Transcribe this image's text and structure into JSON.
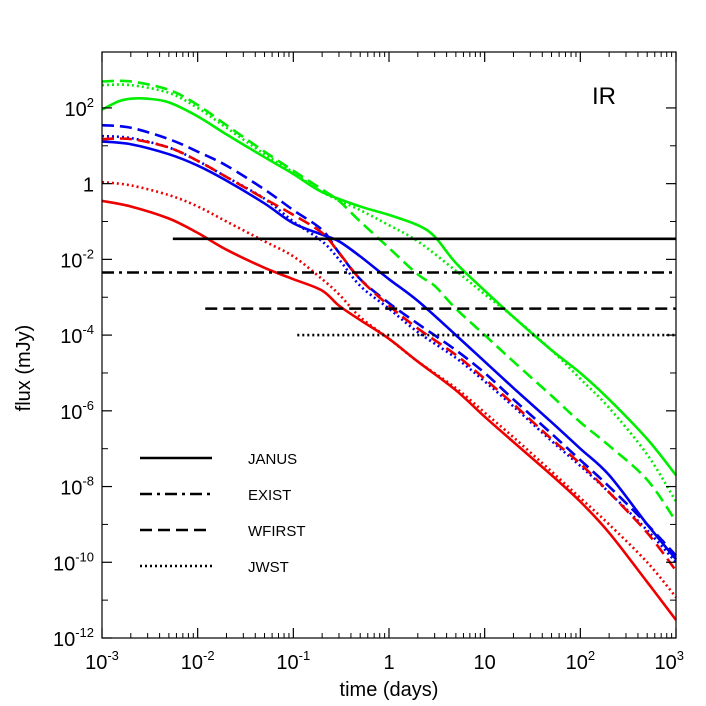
{
  "chart_data": {
    "type": "line",
    "annotation": "IR",
    "xlabel": "time (days)",
    "ylabel": "flux (mJy)",
    "x_scale": "log",
    "y_scale": "log",
    "xlim": [
      0.001,
      1000
    ],
    "ylim": [
      1e-12,
      3000
    ],
    "grid": false,
    "legend_position": "bottom-left",
    "x_ticks": [
      {
        "value": 0.001,
        "base": "10",
        "exp": "-3"
      },
      {
        "value": 0.01,
        "base": "10",
        "exp": "-2"
      },
      {
        "value": 0.1,
        "base": "10",
        "exp": "-1"
      },
      {
        "value": 1,
        "base": "1",
        "exp": ""
      },
      {
        "value": 10,
        "base": "10",
        "exp": ""
      },
      {
        "value": 100,
        "base": "10",
        "exp": "2"
      },
      {
        "value": 1000,
        "base": "10",
        "exp": "3"
      }
    ],
    "y_ticks": [
      {
        "value": 1e-12,
        "base": "10",
        "exp": "-12"
      },
      {
        "value": 1e-10,
        "base": "10",
        "exp": "-10"
      },
      {
        "value": 1e-08,
        "base": "10",
        "exp": "-8"
      },
      {
        "value": 1e-06,
        "base": "10",
        "exp": "-6"
      },
      {
        "value": 0.0001,
        "base": "10",
        "exp": "-4"
      },
      {
        "value": 0.01,
        "base": "10",
        "exp": "-2"
      },
      {
        "value": 1,
        "base": "1",
        "exp": ""
      },
      {
        "value": 100,
        "base": "10",
        "exp": "2"
      }
    ],
    "legend": [
      {
        "label": "JANUS",
        "style": "solid"
      },
      {
        "label": "EXIST",
        "style": "dashdot"
      },
      {
        "label": "WFIRST",
        "style": "dashed"
      },
      {
        "label": "JWST",
        "style": "dotted"
      }
    ],
    "thresholds": [
      {
        "instrument": "JANUS",
        "style": "solid",
        "flux": 0.035,
        "x_start": 0.0055,
        "x_end": 1000
      },
      {
        "instrument": "EXIST",
        "style": "dashdot",
        "flux": 0.0045,
        "x_start": 0.001,
        "x_end": 1000
      },
      {
        "instrument": "WFIRST",
        "style": "dashed",
        "flux": 0.0005,
        "x_start": 0.012,
        "x_end": 1000
      },
      {
        "instrument": "JWST",
        "style": "dotted",
        "flux": 0.0001,
        "x_start": 0.11,
        "x_end": 1000
      }
    ],
    "series": [
      {
        "color": "#00ee00",
        "style": "solid",
        "points": [
          [
            0.001,
            90
          ],
          [
            0.0015,
            150
          ],
          [
            0.002,
            175
          ],
          [
            0.003,
            175
          ],
          [
            0.005,
            140
          ],
          [
            0.01,
            60
          ],
          [
            0.02,
            20
          ],
          [
            0.05,
            5
          ],
          [
            0.1,
            1.8
          ],
          [
            0.2,
            0.6
          ],
          [
            0.5,
            0.25
          ],
          [
            1,
            0.15
          ],
          [
            2,
            0.08
          ],
          [
            3,
            0.04
          ],
          [
            5,
            0.008
          ],
          [
            10,
            0.0015
          ],
          [
            20,
            0.0003
          ],
          [
            50,
            4e-05
          ],
          [
            100,
            1e-05
          ],
          [
            200,
            2e-06
          ],
          [
            500,
            1.8e-07
          ],
          [
            1000,
            2e-08
          ]
        ]
      },
      {
        "color": "#00ee00",
        "style": "dashed",
        "points": [
          [
            0.001,
            500
          ],
          [
            0.002,
            500
          ],
          [
            0.005,
            300
          ],
          [
            0.01,
            120
          ],
          [
            0.02,
            35
          ],
          [
            0.05,
            7
          ],
          [
            0.1,
            2.2
          ],
          [
            0.2,
            0.7
          ],
          [
            0.3,
            0.35
          ],
          [
            0.5,
            0.1
          ],
          [
            1,
            0.02
          ],
          [
            2,
            0.004
          ],
          [
            3,
            0.002
          ],
          [
            5,
            0.0005
          ],
          [
            10,
            0.0001
          ],
          [
            20,
            2e-05
          ],
          [
            50,
            2.5e-06
          ],
          [
            100,
            5e-07
          ],
          [
            200,
            1.2e-07
          ],
          [
            500,
            1.5e-08
          ],
          [
            1000,
            1.2e-09
          ]
        ]
      },
      {
        "color": "#00ee00",
        "style": "dotted",
        "points": [
          [
            0.001,
            400
          ],
          [
            0.002,
            400
          ],
          [
            0.005,
            250
          ],
          [
            0.01,
            100
          ],
          [
            0.02,
            30
          ],
          [
            0.05,
            6
          ],
          [
            0.1,
            2
          ],
          [
            0.2,
            0.6
          ],
          [
            0.5,
            0.2
          ],
          [
            1,
            0.08
          ],
          [
            2,
            0.03
          ],
          [
            5,
            0.005
          ],
          [
            10,
            0.0012
          ],
          [
            20,
            0.0003
          ],
          [
            50,
            4e-05
          ],
          [
            100,
            7e-06
          ],
          [
            200,
            1.2e-06
          ],
          [
            500,
            7e-08
          ],
          [
            1000,
            4e-09
          ]
        ]
      },
      {
        "color": "#0000ee",
        "style": "solid",
        "points": [
          [
            0.001,
            13
          ],
          [
            0.002,
            11
          ],
          [
            0.005,
            6
          ],
          [
            0.01,
            3
          ],
          [
            0.02,
            1.2
          ],
          [
            0.05,
            0.3
          ],
          [
            0.1,
            0.09
          ],
          [
            0.2,
            0.045
          ],
          [
            0.3,
            0.03
          ],
          [
            0.5,
            0.012
          ],
          [
            1,
            0.003
          ],
          [
            2,
            0.0008
          ],
          [
            5,
            0.0001
          ],
          [
            10,
            2e-05
          ],
          [
            20,
            4e-06
          ],
          [
            50,
            5e-07
          ],
          [
            100,
            1e-07
          ],
          [
            200,
            2e-08
          ],
          [
            500,
            1e-09
          ],
          [
            1000,
            1.2e-10
          ]
        ]
      },
      {
        "color": "#0000ee",
        "style": "dashed",
        "points": [
          [
            0.001,
            35
          ],
          [
            0.002,
            30
          ],
          [
            0.005,
            15
          ],
          [
            0.01,
            7
          ],
          [
            0.02,
            3
          ],
          [
            0.05,
            0.7
          ],
          [
            0.1,
            0.2
          ],
          [
            0.2,
            0.06
          ],
          [
            0.3,
            0.015
          ],
          [
            0.5,
            0.003
          ],
          [
            1,
            0.0007
          ],
          [
            2,
            0.0002
          ],
          [
            5,
            4e-05
          ],
          [
            10,
            1e-05
          ],
          [
            20,
            2e-06
          ],
          [
            50,
            2.5e-07
          ],
          [
            100,
            5e-08
          ],
          [
            200,
            1e-08
          ],
          [
            500,
            1e-09
          ],
          [
            1000,
            1.5e-10
          ]
        ]
      },
      {
        "color": "#0000ee",
        "style": "dotted",
        "points": [
          [
            0.001,
            18
          ],
          [
            0.002,
            16
          ],
          [
            0.005,
            9
          ],
          [
            0.01,
            4
          ],
          [
            0.02,
            1.5
          ],
          [
            0.05,
            0.4
          ],
          [
            0.1,
            0.1
          ],
          [
            0.2,
            0.03
          ],
          [
            0.3,
            0.01
          ],
          [
            0.5,
            0.002
          ],
          [
            1,
            0.0005
          ],
          [
            2,
            0.00012
          ],
          [
            5,
            2.5e-05
          ],
          [
            10,
            6e-06
          ],
          [
            20,
            1.3e-06
          ],
          [
            50,
            1.6e-07
          ],
          [
            100,
            3.5e-08
          ],
          [
            200,
            7e-09
          ],
          [
            500,
            7e-10
          ],
          [
            1000,
            1e-10
          ]
        ]
      },
      {
        "color": "#ee0000",
        "style": "solid",
        "points": [
          [
            0.001,
            0.35
          ],
          [
            0.002,
            0.25
          ],
          [
            0.005,
            0.12
          ],
          [
            0.01,
            0.05
          ],
          [
            0.02,
            0.018
          ],
          [
            0.05,
            0.006
          ],
          [
            0.1,
            0.003
          ],
          [
            0.2,
            0.0015
          ],
          [
            0.3,
            0.0006
          ],
          [
            0.5,
            0.00025
          ],
          [
            1,
            8e-05
          ],
          [
            2,
            2e-05
          ],
          [
            5,
            3.5e-06
          ],
          [
            10,
            7e-07
          ],
          [
            20,
            1.5e-07
          ],
          [
            50,
            2e-08
          ],
          [
            100,
            4e-09
          ],
          [
            200,
            6e-10
          ],
          [
            500,
            3e-11
          ],
          [
            1000,
            3e-12
          ]
        ]
      },
      {
        "color": "#ee0000",
        "style": "dashed",
        "points": [
          [
            0.001,
            15
          ],
          [
            0.002,
            15
          ],
          [
            0.005,
            9
          ],
          [
            0.01,
            4
          ],
          [
            0.02,
            1.5
          ],
          [
            0.05,
            0.4
          ],
          [
            0.1,
            0.15
          ],
          [
            0.2,
            0.05
          ],
          [
            0.3,
            0.015
          ],
          [
            0.5,
            0.003
          ],
          [
            1,
            0.0006
          ],
          [
            2,
            0.00015
          ],
          [
            5,
            3e-05
          ],
          [
            10,
            7e-06
          ],
          [
            20,
            1.5e-06
          ],
          [
            50,
            1.8e-07
          ],
          [
            100,
            4e-08
          ],
          [
            200,
            7e-09
          ],
          [
            500,
            6e-10
          ],
          [
            1000,
            6e-11
          ]
        ]
      },
      {
        "color": "#ee0000",
        "style": "dotted",
        "points": [
          [
            0.001,
            1.1
          ],
          [
            0.002,
            0.9
          ],
          [
            0.005,
            0.5
          ],
          [
            0.01,
            0.25
          ],
          [
            0.02,
            0.1
          ],
          [
            0.05,
            0.03
          ],
          [
            0.1,
            0.012
          ],
          [
            0.2,
            0.003
          ],
          [
            0.3,
            0.0012
          ],
          [
            0.5,
            0.0003
          ],
          [
            1,
            8e-05
          ],
          [
            2,
            2e-05
          ],
          [
            5,
            4e-06
          ],
          [
            10,
            9e-07
          ],
          [
            20,
            2e-07
          ],
          [
            50,
            2.5e-08
          ],
          [
            100,
            5e-09
          ],
          [
            200,
            1e-09
          ],
          [
            500,
            1e-10
          ],
          [
            1000,
            1.2e-11
          ]
        ]
      }
    ]
  }
}
